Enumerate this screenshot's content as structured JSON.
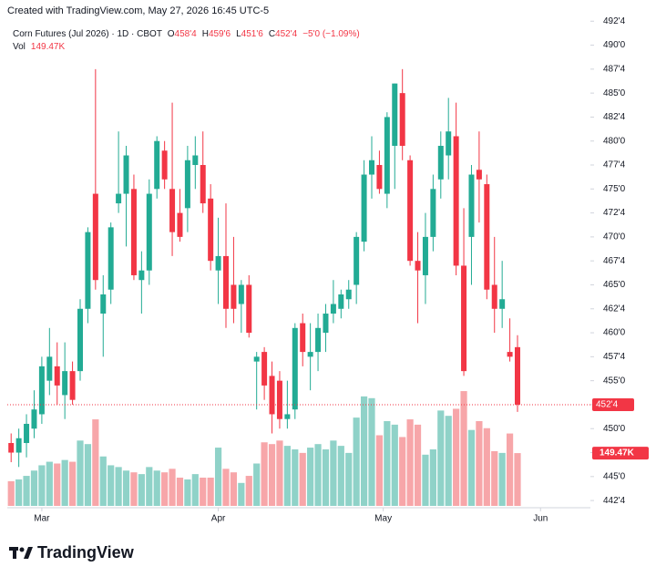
{
  "watermark": "Created with TradingView.com, May 27, 2026 16:45 UTC-5",
  "brand": "TradingView",
  "chart_data": {
    "type": "candlestick",
    "title": "Corn Futures (Jul 2026) · 1D · CBOT",
    "header": [
      {
        "key": "O",
        "value": "458'4"
      },
      {
        "key": "H",
        "value": "459'6"
      },
      {
        "key": "L",
        "value": "451'6"
      },
      {
        "key": "C",
        "value": "452'4"
      },
      {
        "key": "",
        "value": "−5'0 (−1.09%)"
      }
    ],
    "volume_title": "Vol",
    "up_color": "#22ab94",
    "down_color": "#f23645",
    "up_volume_color": "#8fd2c8",
    "down_volume_color": "#f7a6a9",
    "grid": false,
    "candles": [
      [
        448.5,
        449.5,
        446.5,
        447.5
      ],
      [
        447.5,
        450,
        446,
        449
      ],
      [
        448.5,
        451.5,
        447,
        450.5
      ],
      [
        450,
        454,
        449,
        452
      ],
      [
        451.5,
        457.5,
        450.5,
        456.5
      ],
      [
        455,
        460.5,
        453.5,
        457.5
      ],
      [
        456.5,
        459,
        452.5,
        454.5
      ],
      [
        453.5,
        459,
        451,
        456
      ],
      [
        456,
        457,
        452.5,
        453
      ],
      [
        456,
        463.5,
        455,
        462.5
      ],
      [
        462.5,
        471,
        461,
        470.5
      ],
      [
        474.5,
        487.5,
        464.5,
        465.5
      ],
      [
        462,
        466,
        457.5,
        464
      ],
      [
        464.5,
        471.5,
        463,
        471
      ],
      [
        473.5,
        481,
        472.5,
        474.5
      ],
      [
        474.5,
        479.5,
        469,
        478.5
      ],
      [
        475,
        476.5,
        465.5,
        466
      ],
      [
        465.5,
        468.5,
        462,
        466.5
      ],
      [
        466.5,
        476,
        465,
        474.5
      ],
      [
        475,
        480.5,
        474,
        480
      ],
      [
        479,
        480,
        475,
        476
      ],
      [
        475,
        484,
        468,
        470.5
      ],
      [
        472.5,
        475,
        469.5,
        470
      ],
      [
        473,
        479.5,
        470.5,
        478
      ],
      [
        477.5,
        480.5,
        475,
        478.5
      ],
      [
        477.5,
        481,
        472.5,
        473.5
      ],
      [
        474,
        475.5,
        466.5,
        467.5
      ],
      [
        466.5,
        472,
        463,
        468
      ],
      [
        468,
        473.5,
        460.5,
        462.5
      ],
      [
        465,
        470,
        461,
        462.5
      ],
      [
        463,
        465.5,
        460,
        465
      ],
      [
        465,
        466,
        459.5,
        460
      ],
      [
        457,
        458,
        452,
        457.5
      ],
      [
        458,
        458.5,
        453,
        454.5
      ],
      [
        455.5,
        457,
        449.5,
        451.5
      ],
      [
        455,
        456,
        450,
        451
      ],
      [
        451,
        455,
        450,
        451.5
      ],
      [
        452,
        461,
        451,
        460.5
      ],
      [
        461,
        462,
        456.5,
        458
      ],
      [
        457.5,
        461,
        454,
        458
      ],
      [
        458,
        462,
        456,
        460.5
      ],
      [
        460,
        463,
        458,
        462
      ],
      [
        462,
        465.5,
        461,
        463
      ],
      [
        462.5,
        464.5,
        461.5,
        464
      ],
      [
        463.5,
        465.5,
        462.5,
        464.5
      ],
      [
        465,
        470.5,
        463,
        470
      ],
      [
        469.5,
        478,
        468.5,
        476.5
      ],
      [
        476.5,
        480.5,
        474,
        478
      ],
      [
        477.5,
        479,
        474.5,
        475
      ],
      [
        474.5,
        483,
        473,
        482.5
      ],
      [
        479.5,
        486,
        475,
        486
      ],
      [
        485,
        487.5,
        478,
        479.5
      ],
      [
        478,
        478.5,
        467,
        467.5
      ],
      [
        467.5,
        470.5,
        461,
        466.5
      ],
      [
        466,
        472.5,
        463,
        470
      ],
      [
        470,
        476.5,
        468.5,
        475
      ],
      [
        476,
        481,
        474,
        479.5
      ],
      [
        478.5,
        484.5,
        476,
        481
      ],
      [
        480.5,
        484,
        466,
        467
      ],
      [
        467,
        473,
        455.5,
        456
      ],
      [
        470,
        477.5,
        465,
        476.5
      ],
      [
        477,
        481,
        471.5,
        476
      ],
      [
        475.5,
        476.5,
        463.5,
        464.5
      ],
      [
        465,
        470,
        460,
        462.5
      ],
      [
        462.5,
        467.5,
        460.5,
        463.5
      ],
      [
        458,
        461.5,
        457,
        457.5
      ],
      [
        458.5,
        459.75,
        451.75,
        452.5
      ]
    ],
    "volume": [
      70000,
      75000,
      85000,
      100000,
      115000,
      125000,
      120000,
      130000,
      125000,
      185000,
      175000,
      245000,
      140000,
      115000,
      110000,
      100000,
      95000,
      90000,
      110000,
      100000,
      95000,
      105000,
      80000,
      75000,
      90000,
      80000,
      80000,
      165000,
      105000,
      95000,
      65000,
      85000,
      120000,
      180000,
      175000,
      185000,
      170000,
      160000,
      150000,
      165000,
      175000,
      160000,
      185000,
      170000,
      150000,
      250000,
      310000,
      305000,
      200000,
      240000,
      230000,
      195000,
      245000,
      230000,
      145000,
      160000,
      270000,
      255000,
      275000,
      325000,
      215000,
      240000,
      220000,
      155000,
      150000,
      205000,
      149470
    ],
    "volume_last_label": "149.47K",
    "last_price_label": "452'4",
    "vlim": [
      0,
      400000
    ],
    "xlim": [
      -0.5,
      75.5
    ],
    "xticks": [
      {
        "value": 4,
        "label": "Mar"
      },
      {
        "value": 27,
        "label": "Apr"
      },
      {
        "value": 48.5,
        "label": "May"
      },
      {
        "value": 69,
        "label": "Jun"
      }
    ],
    "ylim": [
      441.75,
      493
    ],
    "yticks": [
      {
        "value": 442.5,
        "label": "442'4"
      },
      {
        "value": 445,
        "label": "445'0"
      },
      {
        "value": 447.5,
        "label": "447'4"
      },
      {
        "value": 450,
        "label": "450'0"
      },
      {
        "value": 452.5,
        "label": "452'4"
      },
      {
        "value": 455,
        "label": "455'0"
      },
      {
        "value": 457.5,
        "label": "457'4"
      },
      {
        "value": 460,
        "label": "460'0"
      },
      {
        "value": 462.5,
        "label": "462'4"
      },
      {
        "value": 465,
        "label": "465'0"
      },
      {
        "value": 467.5,
        "label": "467'4"
      },
      {
        "value": 470,
        "label": "470'0"
      },
      {
        "value": 472.5,
        "label": "472'4"
      },
      {
        "value": 475,
        "label": "475'0"
      },
      {
        "value": 477.5,
        "label": "477'4"
      },
      {
        "value": 480,
        "label": "480'0"
      },
      {
        "value": 482.5,
        "label": "482'4"
      },
      {
        "value": 485,
        "label": "485'0"
      },
      {
        "value": 487.5,
        "label": "487'4"
      },
      {
        "value": 490,
        "label": "490'0"
      },
      {
        "value": 492.5,
        "label": "492'4"
      }
    ]
  }
}
